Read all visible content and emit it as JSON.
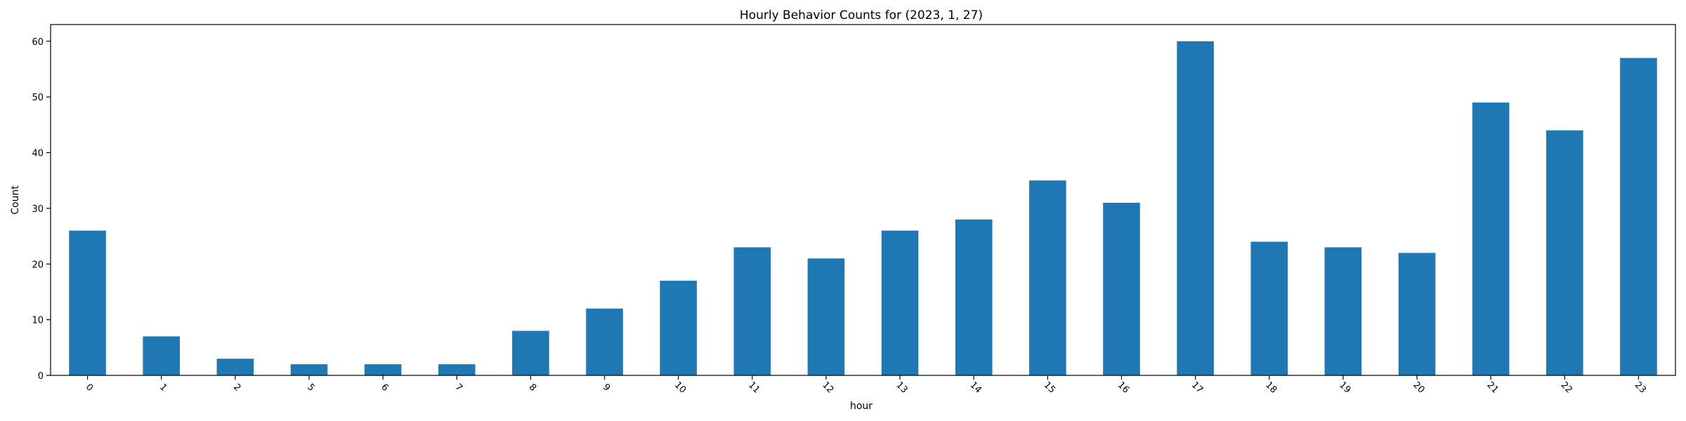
{
  "chart_data": {
    "type": "bar",
    "title": "Hourly Behavior Counts for (2023, 1, 27)",
    "xlabel": "hour",
    "ylabel": "Count",
    "categories": [
      "0",
      "1",
      "2",
      "5",
      "6",
      "7",
      "8",
      "9",
      "10",
      "11",
      "12",
      "13",
      "14",
      "15",
      "16",
      "17",
      "18",
      "19",
      "20",
      "21",
      "22",
      "23"
    ],
    "values": [
      26,
      7,
      3,
      2,
      2,
      2,
      8,
      12,
      17,
      23,
      21,
      26,
      28,
      35,
      31,
      60,
      24,
      23,
      22,
      49,
      44,
      57
    ],
    "ylim": [
      0,
      63
    ],
    "yticks": [
      0,
      10,
      20,
      30,
      40,
      50,
      60
    ],
    "bar_color": "#1f77b4",
    "grid": false,
    "x_tick_rotation": 45
  }
}
